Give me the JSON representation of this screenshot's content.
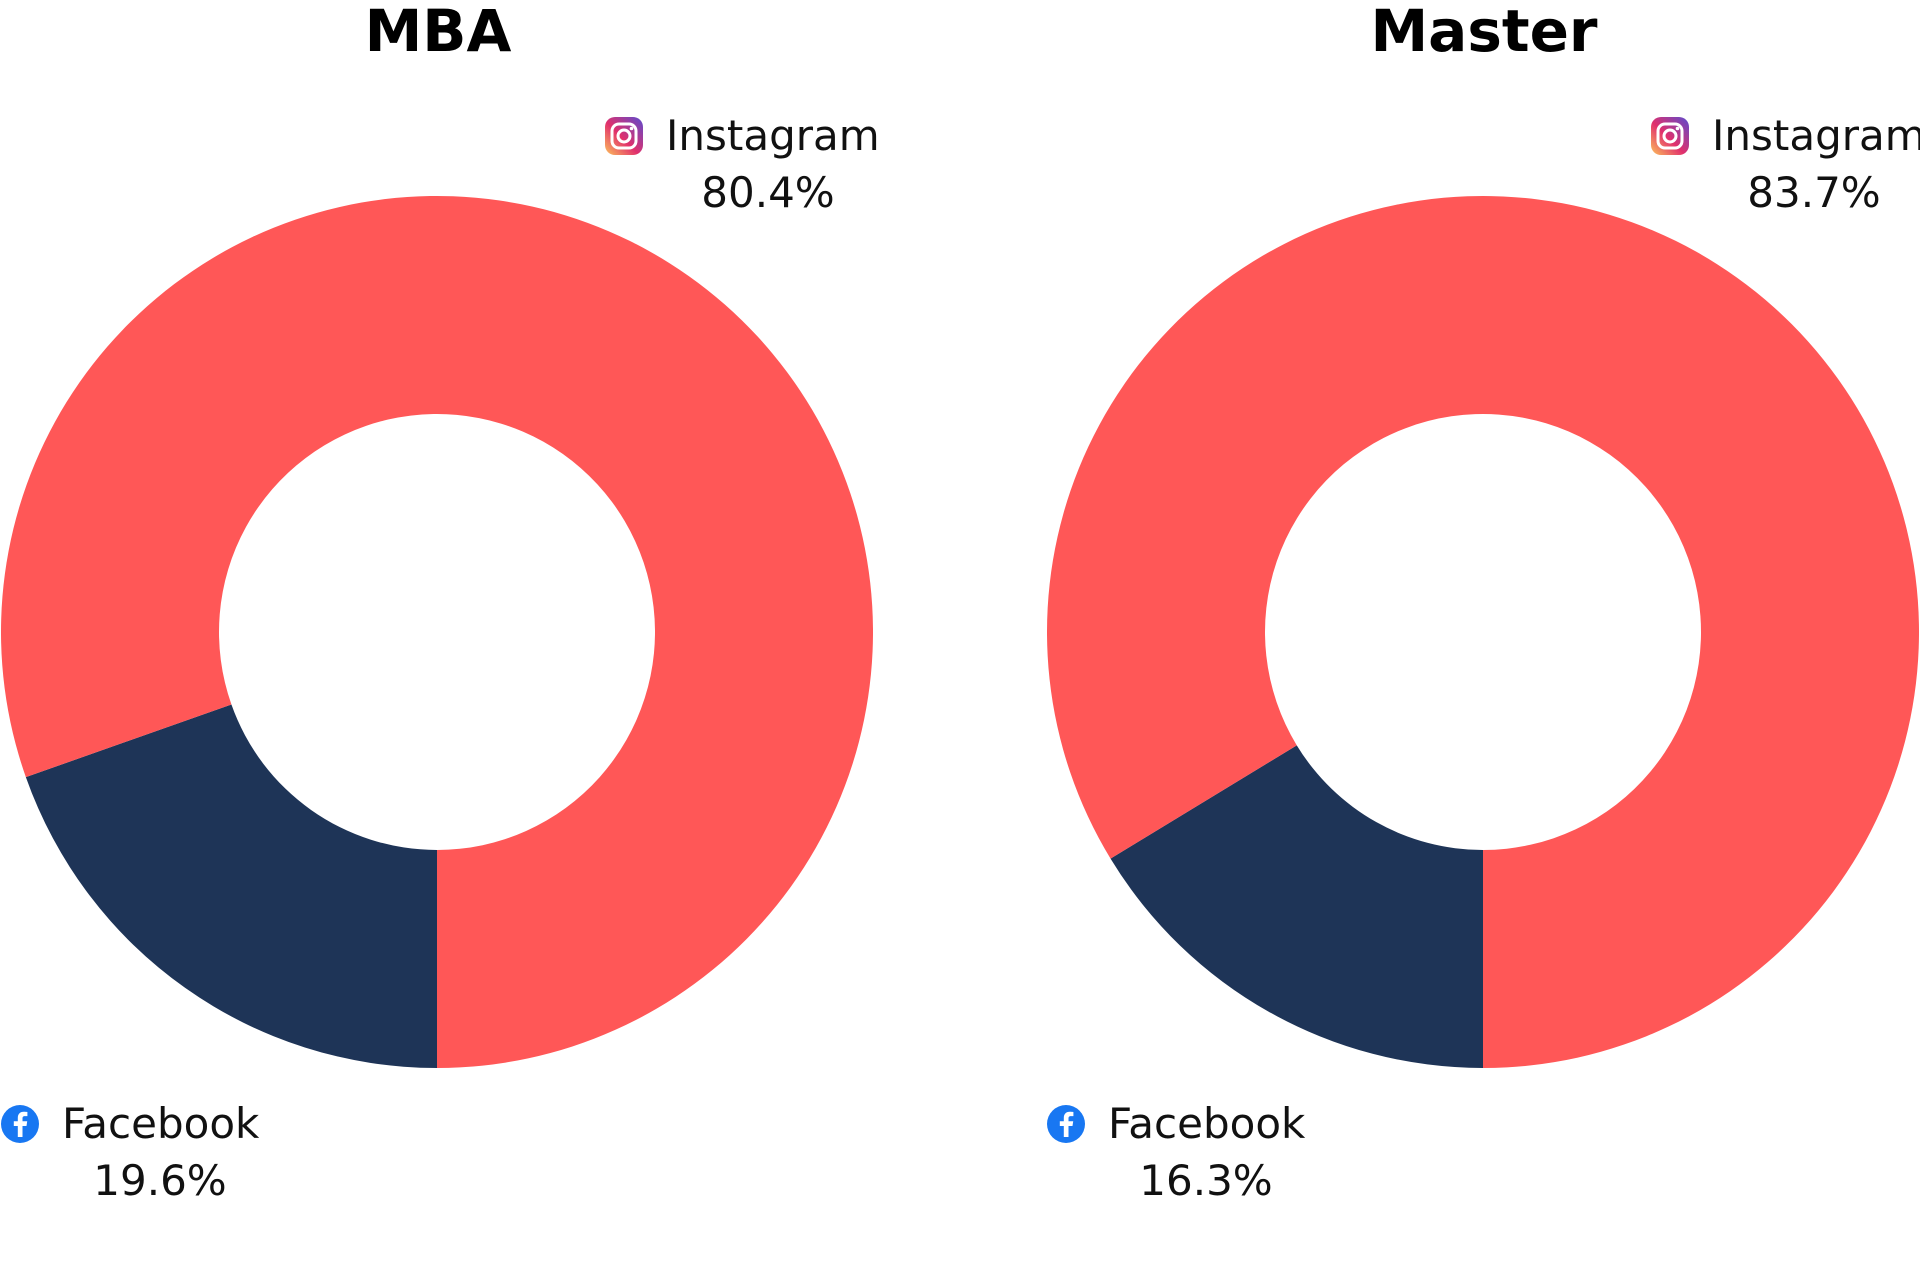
{
  "colors": {
    "instagram": "#FF5757",
    "facebook": "#1E3457",
    "background": "#FFFFFF"
  },
  "icons": {
    "instagram": "instagram-icon",
    "facebook": "facebook-icon"
  },
  "chart_data": [
    {
      "type": "pie",
      "title": "MBA",
      "series": [
        {
          "name": "Instagram",
          "value": 80.4,
          "label": "80.4%"
        },
        {
          "name": "Facebook",
          "value": 19.6,
          "label": "19.6%"
        }
      ]
    },
    {
      "type": "pie",
      "title": "Master",
      "series": [
        {
          "name": "Instagram",
          "value": 83.7,
          "label": "83.7%"
        },
        {
          "name": "Facebook",
          "value": 16.3,
          "label": "16.3%"
        }
      ]
    }
  ]
}
